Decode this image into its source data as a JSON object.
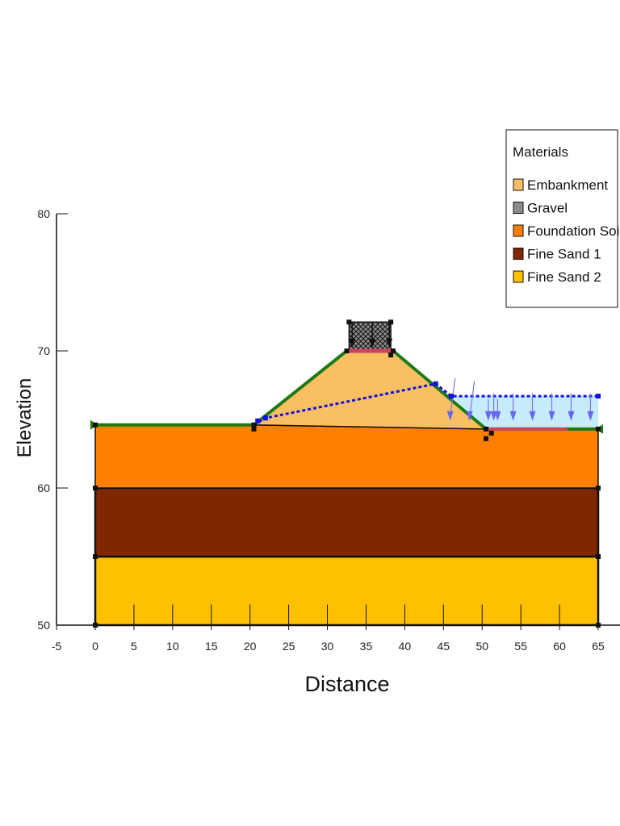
{
  "chart_data": {
    "type": "diagram",
    "xlabel": "Distance",
    "ylabel": "Elevation",
    "xlim": [
      -5,
      67
    ],
    "ylim": [
      50,
      80
    ],
    "xticks": [
      "-5",
      "0",
      "5",
      "10",
      "15",
      "20",
      "25",
      "30",
      "35",
      "40",
      "45",
      "50",
      "55",
      "60",
      "65"
    ],
    "yticks": [
      "50",
      "60",
      "70",
      "80"
    ],
    "materials": [
      {
        "name": "Embankment",
        "color": "#fbbf63"
      },
      {
        "name": "Gravel",
        "color": "#8c8c8c"
      },
      {
        "name": "Foundation Soil",
        "color": "#ff8000"
      },
      {
        "name": "Fine Sand 1",
        "color": "#802600"
      },
      {
        "name": "Fine Sand 2",
        "color": "#ffc000"
      }
    ],
    "legend_title": "Materials",
    "regions": {
      "fine_sand_2": [
        [
          0,
          50
        ],
        [
          65,
          50
        ],
        [
          65,
          55
        ],
        [
          0,
          55
        ]
      ],
      "fine_sand_1": [
        [
          0,
          55
        ],
        [
          65,
          55
        ],
        [
          65,
          60
        ],
        [
          0,
          60
        ]
      ],
      "foundation_soil": [
        [
          0,
          60
        ],
        [
          65,
          60
        ],
        [
          65,
          64.3
        ],
        [
          51,
          64.3
        ],
        [
          50.5,
          64.3
        ],
        [
          20.5,
          64.6
        ],
        [
          0,
          64.6
        ]
      ],
      "embankment": [
        [
          20.5,
          64.6
        ],
        [
          32.5,
          70
        ],
        [
          38.5,
          70
        ],
        [
          50.5,
          64.3
        ]
      ],
      "gravel": [
        [
          32.8,
          70
        ],
        [
          38.2,
          70
        ],
        [
          38.2,
          72.1
        ],
        [
          32.8,
          72.1
        ]
      ]
    },
    "ground_surface": [
      [
        0,
        64.6
      ],
      [
        20.5,
        64.6
      ],
      [
        32.5,
        70
      ],
      [
        38.5,
        70
      ],
      [
        50.5,
        64.3
      ],
      [
        65,
        64.3
      ]
    ],
    "phreatic_line": [
      [
        20.5,
        64.6
      ],
      [
        22,
        65.1
      ],
      [
        44,
        67.6
      ],
      [
        46,
        66.7
      ],
      [
        65,
        66.7
      ]
    ],
    "water_pond": [
      [
        46,
        66.7
      ],
      [
        65,
        66.7
      ],
      [
        65,
        64.3
      ],
      [
        50.5,
        64.3
      ]
    ]
  }
}
